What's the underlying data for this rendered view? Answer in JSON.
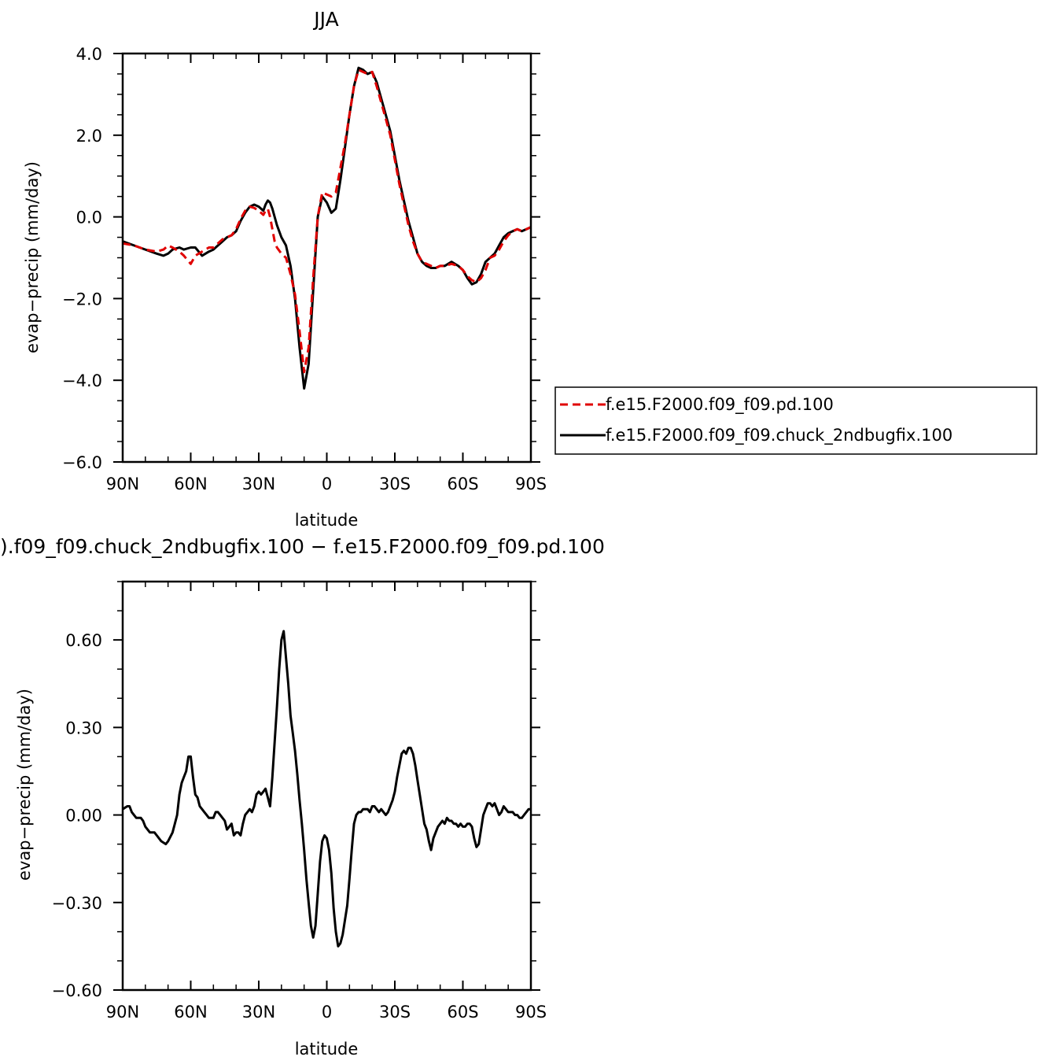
{
  "chart_data": [
    {
      "type": "line",
      "title": "JJA",
      "xlabel": "latitude",
      "ylabel": "evap−precip (mm/day)",
      "xlim": [
        90,
        -90
      ],
      "ylim": [
        -6.0,
        4.0
      ],
      "x_ticks": [
        {
          "value": 90,
          "label": "90N"
        },
        {
          "value": 60,
          "label": "60N"
        },
        {
          "value": 30,
          "label": "30N"
        },
        {
          "value": 0,
          "label": "0"
        },
        {
          "value": -30,
          "label": "30S"
        },
        {
          "value": -60,
          "label": "60S"
        },
        {
          "value": -90,
          "label": "90S"
        }
      ],
      "y_ticks": [
        {
          "value": 4.0,
          "label": "4.0"
        },
        {
          "value": 2.0,
          "label": "2.0"
        },
        {
          "value": 0.0,
          "label": "0.0"
        },
        {
          "value": -2.0,
          "label": "−2.0"
        },
        {
          "value": -4.0,
          "label": "−4.0"
        },
        {
          "value": -6.0,
          "label": "−6.0"
        }
      ],
      "legend_position": "right",
      "series": [
        {
          "name": "f.e15.F2000.f09_f09.pd.100",
          "color": "#e00000",
          "dash": "dashed",
          "x": [
            90,
            85,
            80,
            75,
            72,
            70,
            68,
            65,
            63,
            60,
            58,
            55,
            52,
            50,
            48,
            46,
            44,
            42,
            40,
            38,
            36,
            34,
            32,
            30,
            28,
            27,
            26,
            25,
            24,
            23,
            22,
            20,
            18,
            16,
            14,
            12,
            10,
            8,
            6,
            4,
            2,
            0,
            -2,
            -4,
            -6,
            -8,
            -10,
            -12,
            -14,
            -16,
            -18,
            -20,
            -22,
            -24,
            -26,
            -28,
            -30,
            -32,
            -34,
            -36,
            -38,
            -40,
            -42,
            -44,
            -46,
            -48,
            -50,
            -52,
            -55,
            -58,
            -60,
            -62,
            -64,
            -66,
            -68,
            -70,
            -72,
            -74,
            -76,
            -78,
            -80,
            -82,
            -84,
            -86,
            -88,
            -90
          ],
          "y": [
            -0.65,
            -0.7,
            -0.8,
            -0.85,
            -0.8,
            -0.7,
            -0.75,
            -0.85,
            -0.95,
            -1.15,
            -0.95,
            -0.85,
            -0.75,
            -0.75,
            -0.65,
            -0.55,
            -0.5,
            -0.45,
            -0.3,
            -0.05,
            0.15,
            0.25,
            0.22,
            0.15,
            0.05,
            0.15,
            0.2,
            0.0,
            -0.3,
            -0.6,
            -0.75,
            -0.9,
            -1.0,
            -1.4,
            -1.9,
            -2.8,
            -3.8,
            -3.2,
            -1.5,
            0.0,
            0.6,
            0.55,
            0.5,
            0.6,
            1.2,
            1.8,
            2.5,
            3.2,
            3.6,
            3.55,
            3.5,
            3.55,
            3.2,
            2.8,
            2.4,
            2.0,
            1.4,
            0.8,
            0.3,
            -0.2,
            -0.6,
            -0.9,
            -1.1,
            -1.15,
            -1.2,
            -1.25,
            -1.2,
            -1.2,
            -1.15,
            -1.2,
            -1.3,
            -1.45,
            -1.55,
            -1.6,
            -1.5,
            -1.3,
            -1.0,
            -0.95,
            -0.8,
            -0.6,
            -0.45,
            -0.35,
            -0.3,
            -0.35,
            -0.3,
            -0.25
          ]
        },
        {
          "name": "f.e15.F2000.f09_f09.chuck_2ndbugfix.100",
          "color": "#000000",
          "dash": "solid",
          "x": [
            90,
            85,
            80,
            75,
            72,
            70,
            68,
            65,
            63,
            60,
            58,
            55,
            52,
            50,
            48,
            46,
            44,
            42,
            40,
            38,
            36,
            34,
            32,
            30,
            28,
            27,
            26,
            25,
            24,
            23,
            22,
            20,
            18,
            16,
            14,
            12,
            10,
            8,
            6,
            4,
            2,
            0,
            -2,
            -4,
            -6,
            -8,
            -10,
            -12,
            -14,
            -16,
            -18,
            -20,
            -22,
            -24,
            -26,
            -28,
            -30,
            -32,
            -34,
            -36,
            -38,
            -40,
            -42,
            -44,
            -46,
            -48,
            -50,
            -52,
            -55,
            -58,
            -60,
            -62,
            -64,
            -66,
            -68,
            -70,
            -72,
            -74,
            -76,
            -78,
            -80,
            -82,
            -84,
            -86,
            -88,
            -90
          ],
          "y": [
            -0.6,
            -0.7,
            -0.8,
            -0.9,
            -0.95,
            -0.9,
            -0.8,
            -0.75,
            -0.8,
            -0.75,
            -0.75,
            -0.95,
            -0.85,
            -0.8,
            -0.7,
            -0.6,
            -0.5,
            -0.45,
            -0.35,
            -0.1,
            0.1,
            0.25,
            0.3,
            0.25,
            0.15,
            0.3,
            0.4,
            0.35,
            0.2,
            0.0,
            -0.2,
            -0.5,
            -0.7,
            -1.2,
            -2.0,
            -3.2,
            -4.2,
            -3.6,
            -1.8,
            0.0,
            0.5,
            0.35,
            0.1,
            0.2,
            0.9,
            1.7,
            2.5,
            3.2,
            3.65,
            3.6,
            3.5,
            3.55,
            3.3,
            2.9,
            2.5,
            2.1,
            1.5,
            0.9,
            0.4,
            -0.1,
            -0.5,
            -0.9,
            -1.1,
            -1.2,
            -1.25,
            -1.25,
            -1.2,
            -1.2,
            -1.1,
            -1.2,
            -1.3,
            -1.5,
            -1.65,
            -1.6,
            -1.4,
            -1.1,
            -1.0,
            -0.9,
            -0.7,
            -0.5,
            -0.4,
            -0.35,
            -0.3,
            -0.35,
            -0.3,
            -0.25
          ]
        }
      ]
    },
    {
      "type": "line",
      "title": ").f09_f09.chuck_2ndbugfix.100 − f.e15.F2000.f09_f09.pd.100",
      "xlabel": "latitude",
      "ylabel": "evap−precip (mm/day)",
      "xlim": [
        90,
        -90
      ],
      "ylim": [
        -0.6,
        0.8
      ],
      "x_ticks": [
        {
          "value": 90,
          "label": "90N"
        },
        {
          "value": 60,
          "label": "60N"
        },
        {
          "value": 30,
          "label": "30N"
        },
        {
          "value": 0,
          "label": "0"
        },
        {
          "value": -30,
          "label": "30S"
        },
        {
          "value": -60,
          "label": "60S"
        },
        {
          "value": -90,
          "label": "90S"
        }
      ],
      "y_ticks": [
        {
          "value": 0.6,
          "label": "0.60"
        },
        {
          "value": 0.3,
          "label": "0.30"
        },
        {
          "value": 0.0,
          "label": "0.00"
        },
        {
          "value": -0.3,
          "label": "−0.30"
        },
        {
          "value": -0.6,
          "label": "−0.60"
        }
      ],
      "series": [
        {
          "color": "#000000",
          "dash": "solid",
          "x": [
            90,
            88,
            87,
            86,
            84,
            82,
            81,
            80,
            78,
            76,
            75,
            73,
            71,
            70,
            68,
            67,
            66,
            65,
            64,
            63,
            62,
            61,
            60,
            59,
            58,
            57,
            56,
            55,
            54,
            53,
            52,
            51,
            50,
            49,
            48,
            47,
            46,
            45,
            44,
            43,
            42,
            41,
            40,
            39,
            38,
            37,
            36,
            35,
            34,
            33,
            32,
            31,
            30,
            29,
            28,
            27,
            26,
            25,
            24,
            23,
            22,
            21,
            20,
            19,
            18,
            17,
            16,
            15,
            14,
            13,
            12,
            11,
            10,
            9,
            8,
            7,
            6,
            5,
            4,
            3,
            2,
            1,
            0,
            -1,
            -2,
            -3,
            -4,
            -5,
            -6,
            -7,
            -8,
            -9,
            -10,
            -11,
            -12,
            -13,
            -14,
            -15,
            -16,
            -17,
            -18,
            -19,
            -20,
            -21,
            -22,
            -23,
            -24,
            -25,
            -26,
            -27,
            -28,
            -29,
            -30,
            -31,
            -32,
            -33,
            -34,
            -35,
            -36,
            -37,
            -38,
            -39,
            -40,
            -41,
            -42,
            -43,
            -44,
            -45,
            -46,
            -47,
            -48,
            -49,
            -50,
            -51,
            -52,
            -53,
            -54,
            -55,
            -56,
            -57,
            -58,
            -59,
            -60,
            -61,
            -62,
            -63,
            -64,
            -65,
            -66,
            -67,
            -68,
            -69,
            -70,
            -71,
            -72,
            -73,
            -74,
            -75,
            -76,
            -77,
            -78,
            -79,
            -80,
            -81,
            -82,
            -83,
            -84,
            -85,
            -86,
            -87,
            -88,
            -89,
            -90
          ],
          "y": [
            0.02,
            0.03,
            0.03,
            0.01,
            -0.01,
            -0.01,
            -0.02,
            -0.04,
            -0.06,
            -0.06,
            -0.07,
            -0.09,
            -0.1,
            -0.09,
            -0.06,
            -0.03,
            0.0,
            0.07,
            0.11,
            0.13,
            0.15,
            0.2,
            0.2,
            0.13,
            0.07,
            0.06,
            0.03,
            0.02,
            0.01,
            0.0,
            -0.01,
            -0.01,
            -0.01,
            0.01,
            0.01,
            0.0,
            -0.01,
            -0.02,
            -0.05,
            -0.04,
            -0.03,
            -0.07,
            -0.06,
            -0.06,
            -0.07,
            -0.03,
            0.0,
            0.01,
            0.02,
            0.01,
            0.03,
            0.07,
            0.08,
            0.07,
            0.08,
            0.09,
            0.06,
            0.03,
            0.13,
            0.25,
            0.37,
            0.5,
            0.6,
            0.63,
            0.54,
            0.45,
            0.34,
            0.28,
            0.22,
            0.14,
            0.05,
            -0.03,
            -0.12,
            -0.22,
            -0.3,
            -0.38,
            -0.42,
            -0.38,
            -0.27,
            -0.16,
            -0.09,
            -0.07,
            -0.08,
            -0.12,
            -0.2,
            -0.32,
            -0.4,
            -0.45,
            -0.44,
            -0.41,
            -0.36,
            -0.31,
            -0.22,
            -0.12,
            -0.03,
            0.0,
            0.01,
            0.01,
            0.02,
            0.02,
            0.02,
            0.01,
            0.03,
            0.03,
            0.02,
            0.01,
            0.02,
            0.01,
            0.0,
            0.01,
            0.03,
            0.05,
            0.08,
            0.13,
            0.17,
            0.21,
            0.22,
            0.21,
            0.23,
            0.23,
            0.21,
            0.17,
            0.12,
            0.07,
            0.02,
            -0.03,
            -0.05,
            -0.09,
            -0.12,
            -0.08,
            -0.06,
            -0.04,
            -0.03,
            -0.02,
            -0.03,
            -0.01,
            -0.02,
            -0.02,
            -0.03,
            -0.03,
            -0.04,
            -0.03,
            -0.04,
            -0.04,
            -0.03,
            -0.03,
            -0.04,
            -0.08,
            -0.11,
            -0.1,
            -0.05,
            0.0,
            0.02,
            0.04,
            0.04,
            0.03,
            0.04,
            0.02,
            0.0,
            0.01,
            0.03,
            0.02,
            0.01,
            0.01,
            0.01,
            0.0,
            0.0,
            -0.01,
            -0.01,
            0.0,
            0.01,
            0.02,
            0.02
          ]
        }
      ]
    }
  ]
}
